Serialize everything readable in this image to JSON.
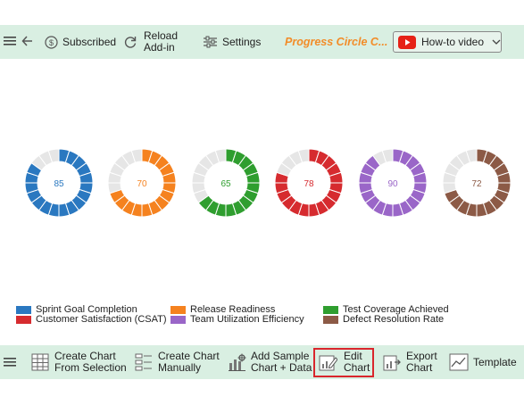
{
  "toolbar_top": {
    "subscribed_label": "Subscribed",
    "reload_line1": "Reload",
    "reload_line2": "Add-in",
    "settings_label": "Settings",
    "chart_title": "Progress Circle C...",
    "howto_label": "How-to video"
  },
  "chart_data": {
    "type": "progress-circle",
    "series": [
      {
        "name": "Sprint Goal Completion",
        "value": 85,
        "color": "#2a78c0"
      },
      {
        "name": "Release Readiness",
        "value": 70,
        "color": "#f5821f"
      },
      {
        "name": "Test Coverage Achieved",
        "value": 65,
        "color": "#2f9e2f"
      },
      {
        "name": "Customer Satisfaction (CSAT)",
        "value": 78,
        "color": "#d62b2f"
      },
      {
        "name": "Team Utilization Efficiency",
        "value": 90,
        "color": "#9a66c8"
      },
      {
        "name": "Defect Resolution Rate",
        "value": 72,
        "color": "#8c5a46"
      }
    ],
    "remainder_color": "#e6e6e6",
    "max": 100
  },
  "toolbar_bottom": {
    "create_sel_line1": "Create Chart",
    "create_sel_line2": "From Selection",
    "create_man_line1": "Create Chart",
    "create_man_line2": "Manually",
    "sample_line1": "Add Sample",
    "sample_line2": "Chart + Data",
    "edit_line1": "Edit",
    "edit_line2": "Chart",
    "export_line1": "Export",
    "export_line2": "Chart",
    "template_label": "Template"
  }
}
